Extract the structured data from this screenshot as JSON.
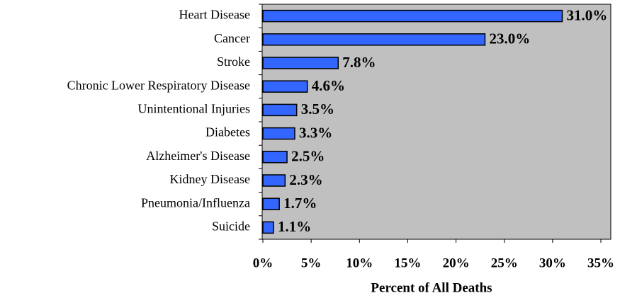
{
  "chart_data": {
    "type": "bar",
    "orientation": "horizontal",
    "categories": [
      "Heart Disease",
      "Cancer",
      "Stroke",
      "Chronic Lower Respiratory Disease",
      "Unintentional Injuries",
      "Diabetes",
      "Alzheimer's Disease",
      "Kidney Disease",
      "Pneumonia/Influenza",
      "Suicide"
    ],
    "values": [
      31.0,
      23.0,
      7.8,
      4.6,
      3.5,
      3.3,
      2.5,
      2.3,
      1.7,
      1.1
    ],
    "value_labels": [
      "31.0%",
      "23.0%",
      "7.8%",
      "4.6%",
      "3.5%",
      "3.3%",
      "2.5%",
      "2.3%",
      "1.7%",
      "1.1%"
    ],
    "color": "#3366ff",
    "xlabel": "Percent of All Deaths",
    "xlim": [
      0,
      35
    ],
    "xticks": [
      {
        "value": 0,
        "label": "0%"
      },
      {
        "value": 5,
        "label": "5%"
      },
      {
        "value": 10,
        "label": "10%"
      },
      {
        "value": 15,
        "label": "15%"
      },
      {
        "value": 20,
        "label": "20%"
      },
      {
        "value": 25,
        "label": "25%"
      },
      {
        "value": 30,
        "label": "30%"
      },
      {
        "value": 35,
        "label": "35%"
      }
    ],
    "grid": false
  }
}
